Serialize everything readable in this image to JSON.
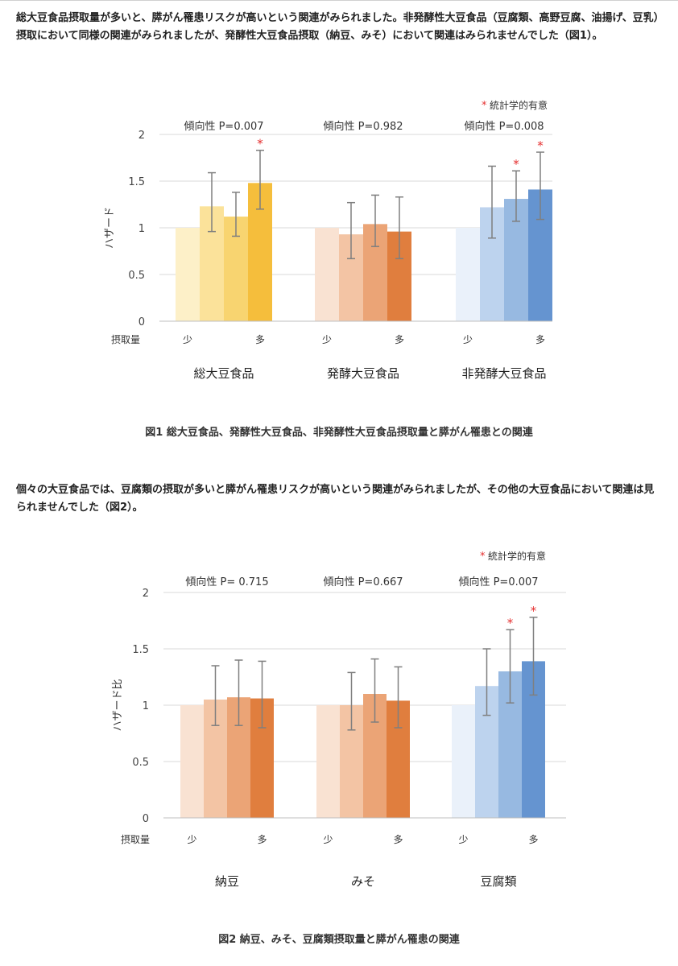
{
  "paragraphs": {
    "p1": "総大豆食品摂取量が多いと、膵がん罹患リスクが高いという関連がみられました。非発酵性大豆食品（豆腐類、高野豆腐、油揚げ、豆乳）摂取において同様の関連がみられましたが、発酵性大豆食品摂取（納豆、みそ）において関連はみられませんでした（図1）。",
    "p2": "個々の大豆食品では、豆腐類の摂取が多いと膵がん罹患リスクが高いという関連がみられましたが、その他の大豆食品において関連は見られませんでした（図2）。"
  },
  "captions": {
    "fig1": "図1 総大豆食品、発酵性大豆食品、非発酵性大豆食品摂取量と膵がん罹患との関連",
    "fig2": "図2 納豆、みそ、豆腐類摂取量と膵がん罹患の関連"
  },
  "colors": {
    "yellow": [
      "#fdf0c8",
      "#fbe29a",
      "#f8d470",
      "#f5be3c"
    ],
    "orange": [
      "#f9e2d2",
      "#f3c4a4",
      "#eba476",
      "#e07e3e"
    ],
    "blue": [
      "#eaf1fa",
      "#bdd3ee",
      "#97b9e1",
      "#6594d0"
    ],
    "errorbar": "#7f7f7f",
    "star": "#e53030",
    "grid": "#d9d9d9"
  },
  "chart_data": [
    {
      "type": "bar",
      "title": "",
      "ylabel": "ハザード",
      "xlabel": "",
      "ylim": [
        0,
        2
      ],
      "yticks": [
        "0",
        "0.5",
        "1",
        "1.5",
        "2"
      ],
      "legend": "* 統計学的有意",
      "intake_label": "摂取量",
      "low_label": "少",
      "high_label": "多",
      "groups": [
        {
          "name": "総大豆食品",
          "trend": "傾向性 P=0.007",
          "palette": "yellow",
          "values": [
            1.0,
            1.23,
            1.12,
            1.48
          ],
          "ci": [
            null,
            [
              0.96,
              1.59
            ],
            [
              0.91,
              1.38
            ],
            [
              1.2,
              1.83
            ]
          ],
          "sig": [
            false,
            false,
            false,
            true
          ]
        },
        {
          "name": "発酵大豆食品",
          "trend": "傾向性 P=0.982",
          "palette": "orange",
          "values": [
            1.0,
            0.93,
            1.04,
            0.96
          ],
          "ci": [
            null,
            [
              0.67,
              1.27
            ],
            [
              0.8,
              1.35
            ],
            [
              0.67,
              1.33
            ]
          ],
          "sig": [
            false,
            false,
            false,
            false
          ]
        },
        {
          "name": "非発酵大豆食品",
          "trend": "傾向性 P=0.008",
          "palette": "blue",
          "values": [
            1.0,
            1.22,
            1.31,
            1.41
          ],
          "ci": [
            null,
            [
              0.89,
              1.66
            ],
            [
              1.07,
              1.61
            ],
            [
              1.09,
              1.81
            ]
          ],
          "sig": [
            false,
            false,
            true,
            true
          ]
        }
      ]
    },
    {
      "type": "bar",
      "title": "",
      "ylabel": "ハザード比",
      "xlabel": "",
      "ylim": [
        0,
        2
      ],
      "yticks": [
        "0",
        "0.5",
        "1",
        "1.5",
        "2"
      ],
      "legend": "* 統計学的有意",
      "intake_label": "摂取量",
      "low_label": "少",
      "high_label": "多",
      "groups": [
        {
          "name": "納豆",
          "trend": "傾向性 P= 0.715",
          "palette": "orange",
          "values": [
            1.0,
            1.05,
            1.07,
            1.06
          ],
          "ci": [
            null,
            [
              0.82,
              1.35
            ],
            [
              0.82,
              1.4
            ],
            [
              0.8,
              1.39
            ]
          ],
          "sig": [
            false,
            false,
            false,
            false
          ]
        },
        {
          "name": "みそ",
          "trend": "傾向性 P=0.667",
          "palette": "orange",
          "values": [
            1.0,
            1.0,
            1.1,
            1.04
          ],
          "ci": [
            null,
            [
              0.78,
              1.29
            ],
            [
              0.85,
              1.41
            ],
            [
              0.8,
              1.34
            ]
          ],
          "sig": [
            false,
            false,
            false,
            false
          ]
        },
        {
          "name": "豆腐類",
          "trend": "傾向性 P=0.007",
          "palette": "blue",
          "values": [
            1.0,
            1.17,
            1.3,
            1.39
          ],
          "ci": [
            null,
            [
              0.91,
              1.5
            ],
            [
              1.02,
              1.67
            ],
            [
              1.09,
              1.78
            ]
          ],
          "sig": [
            false,
            false,
            true,
            true
          ]
        }
      ]
    }
  ]
}
